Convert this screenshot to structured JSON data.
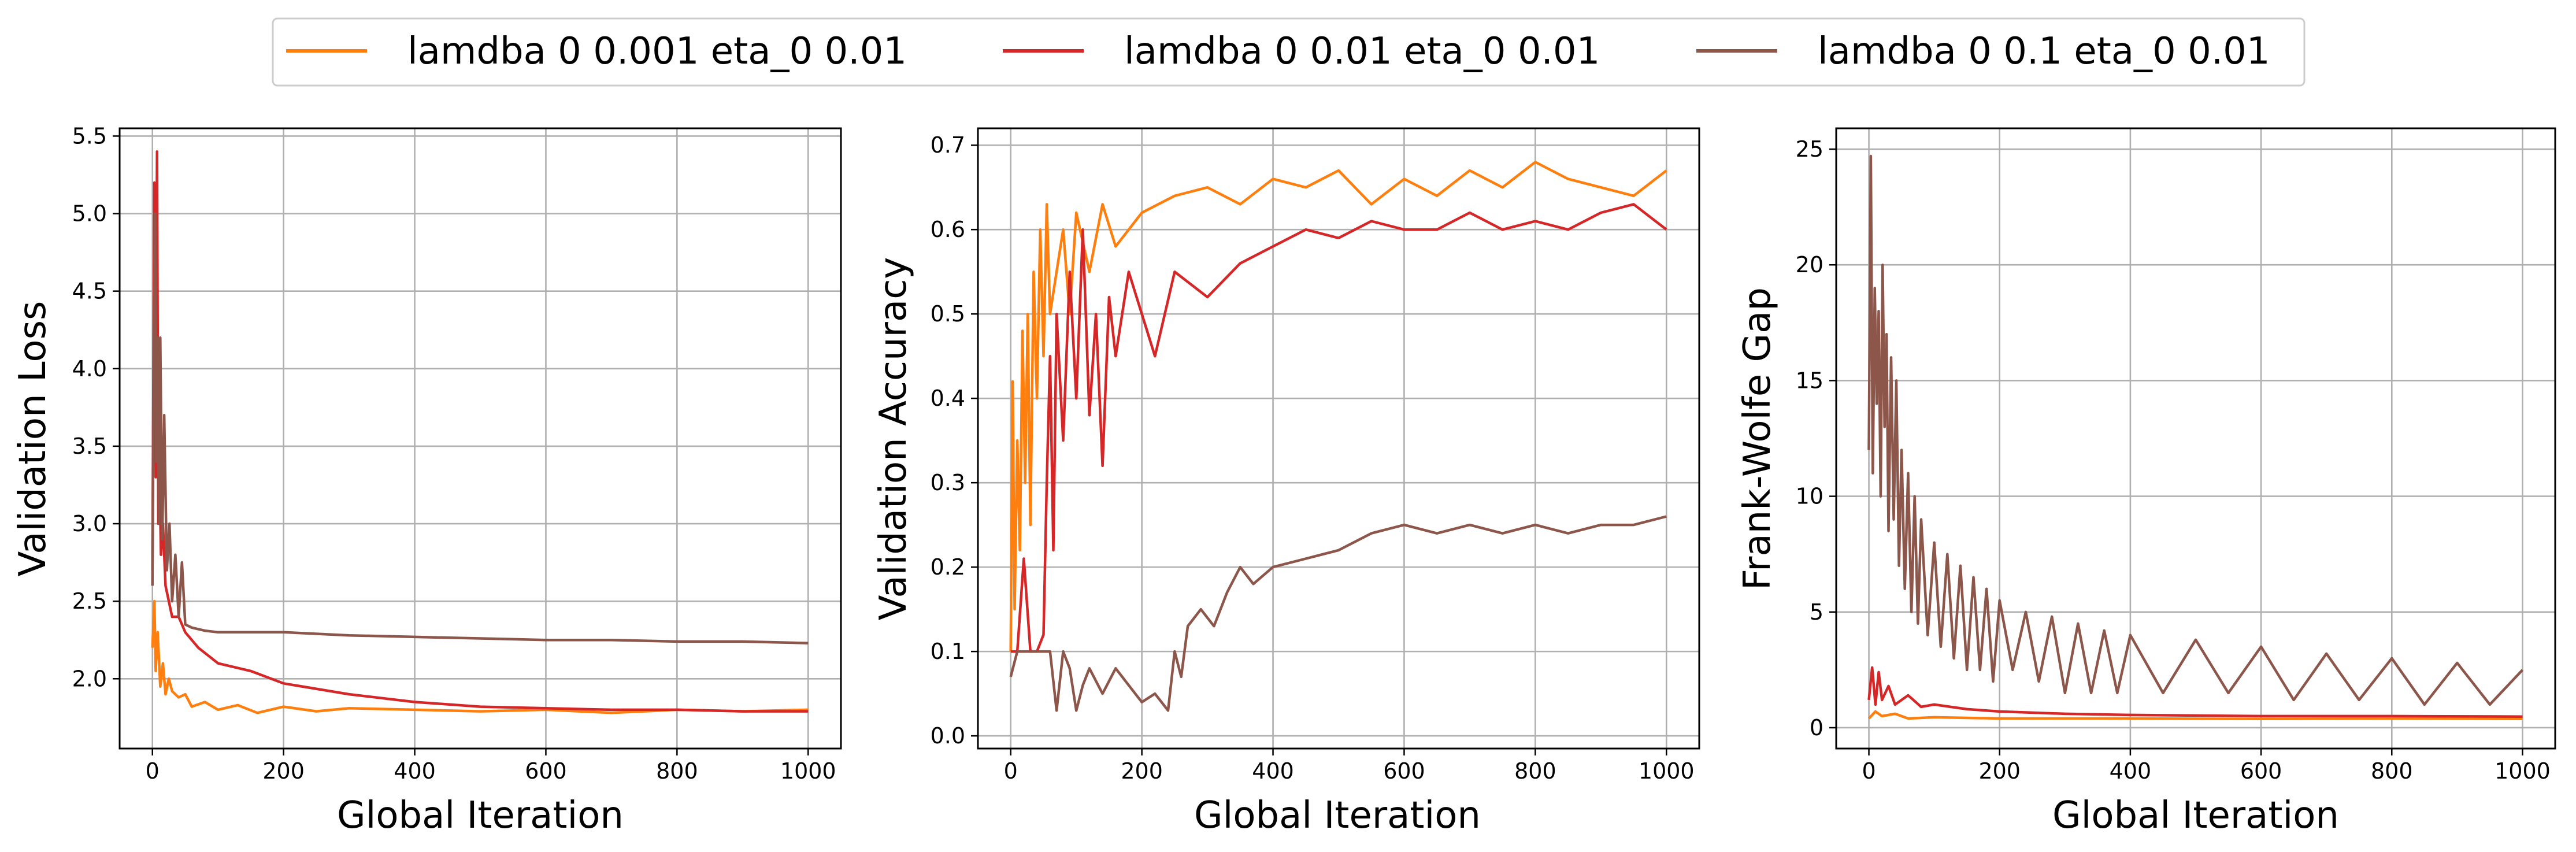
{
  "legend": {
    "entries": [
      {
        "label": "lamdba 0 0.001 eta_0 0.01",
        "color": "#ff7f0e"
      },
      {
        "label": "lamdba 0 0.01 eta_0 0.01",
        "color": "#d62728"
      },
      {
        "label": "lamdba 0 0.1 eta_0 0.01",
        "color": "#8c564b"
      }
    ]
  },
  "chart_data": [
    {
      "type": "line",
      "title": "",
      "xlabel": "Global Iteration",
      "ylabel": "Validation Loss",
      "xlim": [
        -50,
        1050
      ],
      "ylim": [
        1.55,
        5.55
      ],
      "xticks": [
        0,
        200,
        400,
        600,
        800,
        1000
      ],
      "xtick_labels": [
        "0",
        "200",
        "400",
        "600",
        "800",
        "1000"
      ],
      "yticks": [
        2.0,
        2.5,
        3.0,
        3.5,
        4.0,
        4.5,
        5.0,
        5.5
      ],
      "ytick_labels": [
        "2.0",
        "2.5",
        "3.0",
        "3.5",
        "4.0",
        "4.5",
        "5.0",
        "5.5"
      ],
      "grid": true,
      "series": [
        {
          "name": "lamdba 0 0.001 eta_0 0.01",
          "color": "#ff7f0e",
          "x": [
            0,
            3,
            5,
            8,
            12,
            16,
            20,
            25,
            30,
            40,
            50,
            60,
            80,
            100,
            130,
            160,
            200,
            250,
            300,
            400,
            500,
            600,
            700,
            800,
            900,
            1000
          ],
          "y": [
            2.2,
            2.5,
            2.05,
            2.3,
            1.95,
            2.1,
            1.9,
            2.0,
            1.92,
            1.88,
            1.9,
            1.82,
            1.85,
            1.8,
            1.83,
            1.78,
            1.82,
            1.79,
            1.81,
            1.8,
            1.79,
            1.8,
            1.78,
            1.8,
            1.79,
            1.8
          ]
        },
        {
          "name": "lamdba 0 0.01 eta_0 0.01",
          "color": "#d62728",
          "x": [
            0,
            3,
            5,
            7,
            9,
            11,
            13,
            16,
            20,
            25,
            30,
            40,
            50,
            70,
            100,
            150,
            200,
            300,
            400,
            500,
            600,
            700,
            800,
            900,
            1000
          ],
          "y": [
            2.7,
            5.2,
            3.3,
            5.4,
            3.0,
            3.3,
            2.8,
            3.0,
            2.6,
            2.5,
            2.4,
            2.4,
            2.3,
            2.2,
            2.1,
            2.05,
            1.97,
            1.9,
            1.85,
            1.82,
            1.81,
            1.8,
            1.8,
            1.79,
            1.79
          ]
        },
        {
          "name": "lamdba 0 0.1 eta_0 0.01",
          "color": "#8c564b",
          "x": [
            0,
            2,
            4,
            6,
            8,
            10,
            12,
            15,
            18,
            22,
            26,
            30,
            35,
            40,
            45,
            50,
            60,
            70,
            80,
            100,
            200,
            300,
            400,
            500,
            600,
            700,
            800,
            900,
            1000
          ],
          "y": [
            2.6,
            4.1,
            5.0,
            3.4,
            4.2,
            3.0,
            4.2,
            2.9,
            3.7,
            2.7,
            3.0,
            2.5,
            2.8,
            2.4,
            2.75,
            2.35,
            2.33,
            2.32,
            2.31,
            2.3,
            2.3,
            2.28,
            2.27,
            2.26,
            2.25,
            2.25,
            2.24,
            2.24,
            2.23
          ]
        }
      ]
    },
    {
      "type": "line",
      "title": "",
      "xlabel": "Global Iteration",
      "ylabel": "Validation Accuracy",
      "xlim": [
        -50,
        1050
      ],
      "ylim": [
        -0.015,
        0.72
      ],
      "xticks": [
        0,
        200,
        400,
        600,
        800,
        1000
      ],
      "xtick_labels": [
        "0",
        "200",
        "400",
        "600",
        "800",
        "1000"
      ],
      "yticks": [
        0.0,
        0.1,
        0.2,
        0.3,
        0.4,
        0.5,
        0.6,
        0.7
      ],
      "ytick_labels": [
        "0.0",
        "0.1",
        "0.2",
        "0.3",
        "0.4",
        "0.5",
        "0.6",
        "0.7"
      ],
      "grid": true,
      "series": [
        {
          "name": "lamdba 0 0.001 eta_0 0.01",
          "color": "#ff7f0e",
          "x": [
            0,
            3,
            6,
            10,
            14,
            18,
            22,
            26,
            30,
            35,
            40,
            45,
            50,
            55,
            60,
            70,
            80,
            90,
            100,
            120,
            140,
            160,
            180,
            200,
            250,
            300,
            350,
            400,
            450,
            500,
            550,
            600,
            650,
            700,
            750,
            800,
            850,
            900,
            950,
            1000
          ],
          "y": [
            0.1,
            0.42,
            0.15,
            0.35,
            0.22,
            0.48,
            0.3,
            0.5,
            0.25,
            0.55,
            0.4,
            0.6,
            0.45,
            0.63,
            0.5,
            0.55,
            0.6,
            0.5,
            0.62,
            0.55,
            0.63,
            0.58,
            0.6,
            0.62,
            0.64,
            0.65,
            0.63,
            0.66,
            0.65,
            0.67,
            0.63,
            0.66,
            0.64,
            0.67,
            0.65,
            0.68,
            0.66,
            0.65,
            0.64,
            0.67
          ]
        },
        {
          "name": "lamdba 0 0.01 eta_0 0.01",
          "color": "#d62728",
          "x": [
            0,
            10,
            20,
            30,
            40,
            50,
            55,
            60,
            65,
            70,
            80,
            90,
            100,
            110,
            120,
            130,
            140,
            150,
            160,
            180,
            200,
            220,
            250,
            300,
            350,
            400,
            450,
            500,
            550,
            600,
            650,
            700,
            750,
            800,
            850,
            900,
            950,
            1000
          ],
          "y": [
            0.1,
            0.1,
            0.21,
            0.1,
            0.1,
            0.12,
            0.3,
            0.45,
            0.22,
            0.5,
            0.35,
            0.55,
            0.4,
            0.6,
            0.38,
            0.5,
            0.32,
            0.52,
            0.45,
            0.55,
            0.5,
            0.45,
            0.55,
            0.52,
            0.56,
            0.58,
            0.6,
            0.59,
            0.61,
            0.6,
            0.6,
            0.62,
            0.6,
            0.61,
            0.6,
            0.62,
            0.63,
            0.6
          ]
        },
        {
          "name": "lamdba 0 0.1 eta_0 0.01",
          "color": "#8c564b",
          "x": [
            0,
            10,
            20,
            40,
            60,
            70,
            80,
            90,
            100,
            110,
            120,
            140,
            160,
            180,
            200,
            220,
            240,
            250,
            260,
            270,
            290,
            310,
            330,
            350,
            370,
            400,
            450,
            500,
            550,
            600,
            650,
            700,
            750,
            800,
            850,
            900,
            950,
            1000
          ],
          "y": [
            0.07,
            0.1,
            0.1,
            0.1,
            0.1,
            0.03,
            0.1,
            0.08,
            0.03,
            0.06,
            0.08,
            0.05,
            0.08,
            0.06,
            0.04,
            0.05,
            0.03,
            0.1,
            0.07,
            0.13,
            0.15,
            0.13,
            0.17,
            0.2,
            0.18,
            0.2,
            0.21,
            0.22,
            0.24,
            0.25,
            0.24,
            0.25,
            0.24,
            0.25,
            0.24,
            0.25,
            0.25,
            0.26
          ]
        }
      ]
    },
    {
      "type": "line",
      "title": "",
      "xlabel": "Global Iteration",
      "ylabel": "Frank-Wolfe Gap",
      "xlim": [
        -50,
        1050
      ],
      "ylim": [
        -0.9,
        25.9
      ],
      "xticks": [
        0,
        200,
        400,
        600,
        800,
        1000
      ],
      "xtick_labels": [
        "0",
        "200",
        "400",
        "600",
        "800",
        "1000"
      ],
      "yticks": [
        0,
        5,
        10,
        15,
        20,
        25
      ],
      "ytick_labels": [
        "0",
        "5",
        "10",
        "15",
        "20",
        "25"
      ],
      "grid": true,
      "series": [
        {
          "name": "lamdba 0 0.001 eta_0 0.01",
          "color": "#ff7f0e",
          "x": [
            0,
            10,
            20,
            40,
            60,
            100,
            200,
            400,
            600,
            800,
            1000
          ],
          "y": [
            0.4,
            0.7,
            0.5,
            0.6,
            0.4,
            0.45,
            0.4,
            0.4,
            0.38,
            0.4,
            0.38
          ]
        },
        {
          "name": "lamdba 0 0.01 eta_0 0.01",
          "color": "#d62728",
          "x": [
            0,
            5,
            10,
            15,
            20,
            30,
            40,
            60,
            80,
            100,
            150,
            200,
            300,
            400,
            600,
            800,
            1000
          ],
          "y": [
            1.2,
            2.6,
            1.0,
            2.4,
            1.2,
            1.8,
            1.0,
            1.4,
            0.9,
            1.0,
            0.8,
            0.7,
            0.6,
            0.55,
            0.5,
            0.5,
            0.48
          ]
        },
        {
          "name": "lamdba 0 0.1 eta_0 0.01",
          "color": "#8c564b",
          "x": [
            0,
            3,
            6,
            9,
            12,
            15,
            18,
            21,
            24,
            27,
            30,
            34,
            38,
            42,
            46,
            50,
            55,
            60,
            65,
            70,
            75,
            80,
            90,
            100,
            110,
            120,
            130,
            140,
            150,
            160,
            170,
            180,
            190,
            200,
            220,
            240,
            260,
            280,
            300,
            320,
            340,
            360,
            380,
            400,
            450,
            500,
            550,
            600,
            650,
            700,
            750,
            800,
            850,
            900,
            950,
            1000
          ],
          "y": [
            12,
            24.7,
            11,
            19,
            14,
            18,
            10,
            20,
            13,
            17,
            8.5,
            16,
            9,
            15,
            7,
            12,
            6,
            11,
            5,
            10,
            4.5,
            9,
            4,
            8,
            3.5,
            7.5,
            3,
            7,
            2.5,
            6.5,
            2.5,
            6,
            2,
            5.5,
            2.5,
            5,
            2,
            4.8,
            1.5,
            4.5,
            1.5,
            4.2,
            1.5,
            4,
            1.5,
            3.8,
            1.5,
            3.5,
            1.2,
            3.2,
            1.2,
            3,
            1.0,
            2.8,
            1.0,
            2.5
          ]
        }
      ]
    }
  ]
}
